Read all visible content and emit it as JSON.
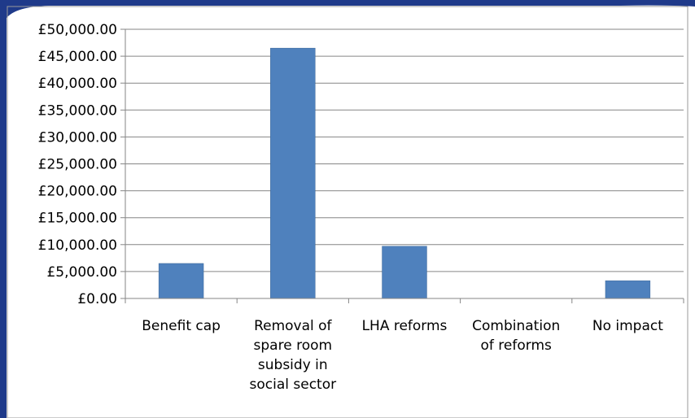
{
  "colors": {
    "bar": "#4F81BD",
    "bar_stroke": "#3A6597",
    "grid": "#868686",
    "axis": "#868686",
    "frame_accent": "#1F3A8A",
    "background": "#ffffff"
  },
  "chart_data": {
    "type": "bar",
    "categories": [
      [
        "Benefit cap"
      ],
      [
        "Removal of",
        "spare room",
        "subsidy in",
        "social sector"
      ],
      [
        "LHA reforms"
      ],
      [
        "Combination",
        "of reforms"
      ],
      [
        "No impact"
      ]
    ],
    "values": [
      6500,
      46500,
      9700,
      0,
      3300
    ],
    "title": "",
    "xlabel": "",
    "ylabel": "",
    "ylim": [
      0,
      50000
    ],
    "ytick_step": 5000,
    "yticks": [
      "£0.00",
      "£5,000.00",
      "£10,000.00",
      "£15,000.00",
      "£20,000.00",
      "£25,000.00",
      "£30,000.00",
      "£35,000.00",
      "£40,000.00",
      "£45,000.00",
      "£50,000.00"
    ],
    "grid": true,
    "legend": "none"
  }
}
